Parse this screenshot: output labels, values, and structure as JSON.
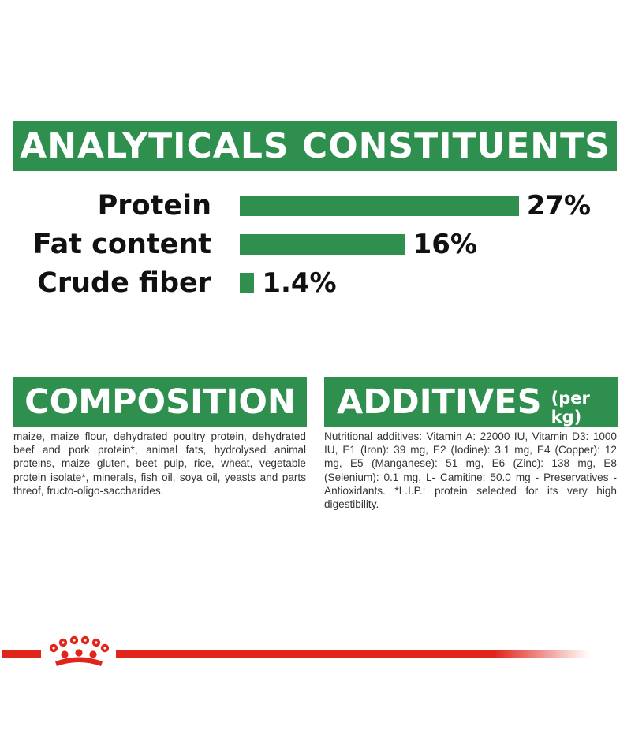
{
  "analytics": {
    "title": "ANALYTICALS CONSTITUENTS",
    "rows": [
      {
        "label": "Protein",
        "value": "27%",
        "percent": 27
      },
      {
        "label": "Fat content",
        "value": "16%",
        "percent": 16
      },
      {
        "label": "Crude fiber",
        "value": "1.4%",
        "percent": 1.4
      }
    ]
  },
  "composition": {
    "title": "COMPOSITION",
    "text": "maize, maize flour, dehydrated poultry protein, dehydrated beef and pork protein*, animal fats, hydrolysed animal proteins, maize gluten, beet pulp, rice, wheat, vegetable protein isolate*, minerals, fish oil, soya oil, yeasts and parts threof, fructo-oligo-saccharides."
  },
  "additives": {
    "title": "ADDITIVES",
    "title_suffix": "(per kg)",
    "text": "Nutritional additives: Vitamin A: 22000 IU, Vitamin D3: 1000 IU, E1 (Iron): 39 mg, E2 (Iodine): 3.1 mg, E4 (Copper): 12 mg, E5 (Manganese): 51 mg, E6 (Zinc): 138 mg, E8 (Selenium): 0.1 mg, L- Camitine: 50.0 mg - Preservatives - Antioxidants. *L.I.P.: protein selected for its very high digestibility."
  },
  "colors": {
    "brand_green": "#2f8f4e",
    "brand_red": "#e1251b"
  },
  "footer": {
    "logo_icon": "royal-crown-icon"
  }
}
